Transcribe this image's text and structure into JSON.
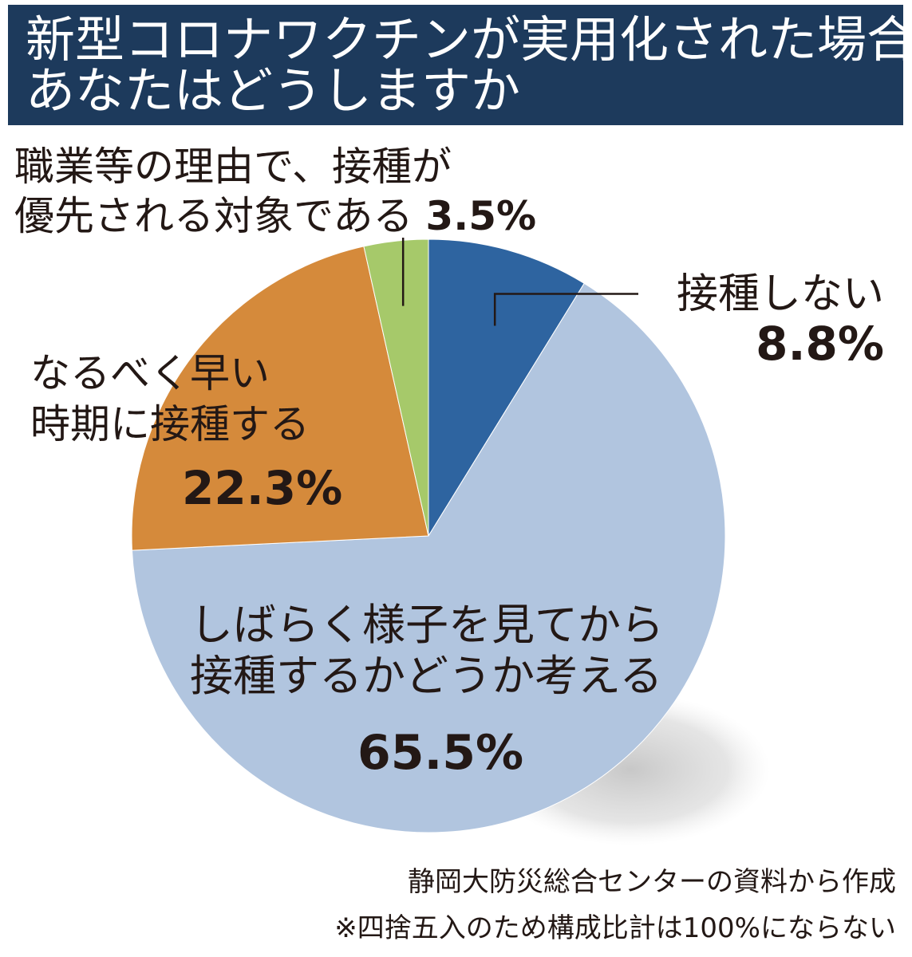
{
  "title": {
    "line1": "新型コロナワクチンが実用化された場合",
    "line2": "あなたはどうしますか"
  },
  "chart_data": {
    "type": "pie",
    "slices": [
      {
        "label_lines": [
          "接種しない"
        ],
        "value_text": "8.8%",
        "value": 8.8,
        "color": "#2e64a0"
      },
      {
        "label_lines": [
          "しばらく様子を見てから",
          "接種するかどうか考える"
        ],
        "value_text": "65.5%",
        "value": 65.5,
        "color": "#b1c5df"
      },
      {
        "label_lines": [
          "なるべく早い",
          "時期に接種する"
        ],
        "value_text": "22.3%",
        "value": 22.3,
        "color": "#d58a3b"
      },
      {
        "label_lines": [
          "職業等の理由で、接種が",
          "優先される対象である"
        ],
        "value_text": "3.5%",
        "value": 3.5,
        "color": "#a6c96a"
      }
    ],
    "start_angle_deg": 0,
    "direction": "clockwise"
  },
  "footer": {
    "source": "静岡大防災総合センターの資料から作成",
    "note": "※四捨五入のため構成比計は100%にならない"
  }
}
